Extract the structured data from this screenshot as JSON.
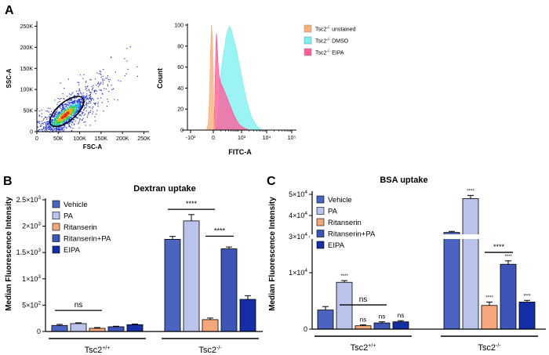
{
  "figure": {
    "panel_a": "A",
    "panel_b": "B",
    "panel_c": "C"
  },
  "colors": {
    "vehicle": "#4a64c0",
    "pa": "#b9c3ec",
    "ritanserin": "#f3a77a",
    "ritanserin_pa": "#3e55b8",
    "eipa": "#152ea6",
    "unstained": "#f7b07a",
    "dmso": "#7ff0f0",
    "eipa_hist": "#ff5c9a",
    "scatter": "#2a36d0"
  },
  "chart_data": [
    {
      "type": "scatter",
      "id": "a-left",
      "xlabel": "FSC-A",
      "ylabel": "SSC-A",
      "xticks": [
        "0",
        "50K",
        "100K",
        "150K",
        "200K",
        "250K"
      ],
      "yticks": [
        "0",
        "50K",
        "100K",
        "150K",
        "200K",
        "250K"
      ],
      "xlim": [
        0,
        262000
      ],
      "ylim": [
        0,
        262000
      ],
      "gate": {
        "cx": 70000,
        "cy": 48000,
        "rx": 48000,
        "ry": 22000,
        "angle_deg": 40
      },
      "density_center": [
        65000,
        40000
      ]
    },
    {
      "type": "area",
      "id": "a-right",
      "xlabel": "FITC-A",
      "ylabel": "Count",
      "yticks": [
        "0",
        "20",
        "40",
        "60",
        "80",
        "100"
      ],
      "xticks": [
        "-10³",
        "0",
        "10³",
        "10⁴",
        "10⁵"
      ],
      "ylim": [
        0,
        100
      ],
      "legend_position": "top-right",
      "series": [
        {
          "name_main": "Tsc2",
          "name_sup": "-/-",
          "name_rest": " unstained",
          "color": "#f7b07a",
          "x": [
            -0.3,
            -0.22,
            -0.17,
            -0.12,
            -0.08,
            -0.05,
            0.0,
            0.04,
            0.1,
            0.18
          ],
          "y": [
            0,
            6,
            30,
            75,
            100,
            90,
            55,
            22,
            6,
            0
          ]
        },
        {
          "name_main": "Tsc2",
          "name_sup": "-/-",
          "name_rest": " DMSO",
          "color": "#7ff0f0",
          "x": [
            0.3,
            0.55,
            0.75,
            0.9,
            1.0,
            1.1,
            1.2,
            1.32,
            1.45,
            1.55,
            1.65,
            1.78,
            1.9,
            2.05,
            2.2,
            2.4,
            2.6,
            2.8
          ],
          "y": [
            0,
            5,
            15,
            30,
            45,
            62,
            75,
            92,
            99,
            94,
            86,
            75,
            62,
            45,
            28,
            12,
            4,
            0
          ]
        },
        {
          "name_main": "Tsc2",
          "name_sup": "-/-",
          "name_rest": " EIPA",
          "color": "#ff5c9a",
          "x": [
            0.05,
            0.2,
            0.32,
            0.42,
            0.5,
            0.58,
            0.66,
            0.76,
            0.9,
            1.05,
            1.2,
            1.35,
            1.5,
            1.7,
            1.9,
            2.1,
            2.3
          ],
          "y": [
            0,
            20,
            55,
            82,
            92,
            85,
            75,
            62,
            52,
            45,
            38,
            30,
            22,
            12,
            5,
            2,
            0
          ]
        }
      ]
    },
    {
      "type": "bar",
      "id": "b",
      "title": "Dextran uptake",
      "ylabel": "Median Fluorescence Intensity",
      "ylim": [
        0,
        2500
      ],
      "yticks": [
        {
          "v": 0,
          "base": "0",
          "exp": ""
        },
        {
          "v": 500,
          "base": "5×10",
          "exp": "2"
        },
        {
          "v": 1000,
          "base": "1×10",
          "exp": "3"
        },
        {
          "v": 1500,
          "base": "1.5×10",
          "exp": "3"
        },
        {
          "v": 2000,
          "base": "2×10",
          "exp": "3"
        },
        {
          "v": 2500,
          "base": "2.5×10",
          "exp": "3"
        }
      ],
      "groups": [
        {
          "main": "Tsc2",
          "sup": "+/+"
        },
        {
          "main": "Tsc2",
          "sup": "-/-"
        }
      ],
      "series": [
        {
          "name": "Vehicle",
          "values": [
            115,
            1750
          ],
          "errors": [
            20,
            55
          ]
        },
        {
          "name": "PA",
          "values": [
            150,
            2100
          ],
          "errors": [
            15,
            120
          ]
        },
        {
          "name": "Ritanserin",
          "values": [
            60,
            225
          ],
          "errors": [
            15,
            30
          ]
        },
        {
          "name": "Ritanserin+PA",
          "values": [
            90,
            1570
          ],
          "errors": [
            10,
            35
          ]
        },
        {
          "name": "EIPA",
          "values": [
            130,
            610
          ],
          "errors": [
            12,
            70
          ]
        }
      ],
      "annotations": [
        {
          "text": "ns",
          "group": 0,
          "from": 0,
          "to": 2,
          "level": 400
        },
        {
          "text": "****",
          "group": 1,
          "from": 0,
          "to": 2,
          "level": 2320
        },
        {
          "text": "****",
          "group": 1,
          "from": 2,
          "to": 3,
          "level": 1810
        }
      ]
    },
    {
      "type": "bar",
      "id": "c",
      "title": "BSA uptake",
      "ylabel": "Median Fluorescence Intensity",
      "ylim": [
        0,
        50000
      ],
      "axis_break": [
        15000,
        30000
      ],
      "yticks": [
        {
          "v": 0,
          "base": "0",
          "exp": ""
        },
        {
          "v": 10000,
          "base": "1×10",
          "exp": "4"
        },
        {
          "v": 30000,
          "base": "3×10",
          "exp": "4"
        },
        {
          "v": 40000,
          "base": "4×10",
          "exp": "4"
        },
        {
          "v": 50000,
          "base": "5×10",
          "exp": "4"
        }
      ],
      "groups": [
        {
          "main": "Tsc2",
          "sup": "+/+"
        },
        {
          "main": "Tsc2",
          "sup": "-/-"
        }
      ],
      "series": [
        {
          "name": "Vehicle",
          "values": [
            3400,
            32000
          ],
          "errors": [
            600,
            500
          ]
        },
        {
          "name": "PA",
          "values": [
            8300,
            48000
          ],
          "errors": [
            300,
            1500
          ]
        },
        {
          "name": "Ritanserin",
          "values": [
            600,
            4200
          ],
          "errors": [
            150,
            600
          ]
        },
        {
          "name": "Ritanserin+PA",
          "values": [
            1100,
            11500
          ],
          "errors": [
            200,
            600
          ]
        },
        {
          "name": "EIPA",
          "values": [
            1300,
            4800
          ],
          "errors": [
            200,
            300
          ]
        }
      ],
      "bar_labels": [
        [
          "",
          "****",
          "ns",
          "ns",
          "ns"
        ],
        [
          "",
          "****",
          "****",
          "****",
          "****"
        ]
      ],
      "annotations": [
        {
          "text": "ns",
          "group": 0,
          "from": 1,
          "to": 3,
          "level": 4300
        },
        {
          "text": "****",
          "group": 1,
          "from": 2,
          "to": 3,
          "level": 13600
        }
      ]
    }
  ]
}
